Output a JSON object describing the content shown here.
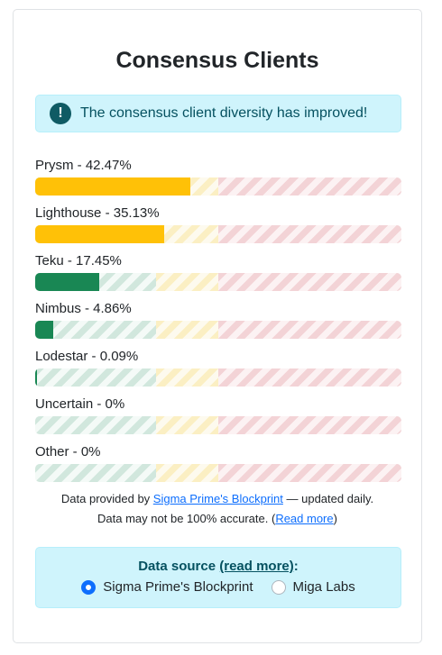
{
  "title": "Consensus Clients",
  "alert": {
    "icon": "exclamation-icon",
    "text": "The consensus client diversity has improved!"
  },
  "clients": [
    {
      "label": "Prysm - 42.47%",
      "share": 0.4247,
      "color": "#ffc107"
    },
    {
      "label": "Lighthouse - 35.13%",
      "share": 0.3513,
      "color": "#ffc107"
    },
    {
      "label": "Teku - 17.45%",
      "share": 0.1745,
      "color": "#198754"
    },
    {
      "label": "Nimbus - 4.86%",
      "share": 0.0486,
      "color": "#198754"
    },
    {
      "label": "Lodestar - 0.09%",
      "share": 0.0009,
      "color": "#198754"
    },
    {
      "label": "Uncertain - 0%",
      "share": 0,
      "color": "#198754"
    },
    {
      "label": "Other - 0%",
      "share": 0,
      "color": "#198754"
    }
  ],
  "footnote": {
    "prefix": "Data provided by ",
    "link": "Sigma Prime's Blockprint",
    "suffix": " — updated daily.",
    "line2_prefix": "Data may not be 100% accurate. (",
    "line2_link": "Read more",
    "line2_suffix": ")"
  },
  "source": {
    "label": "Data source ",
    "link": "(read more)",
    "colon": ":",
    "options": [
      {
        "label": "Sigma Prime's Blockprint",
        "checked": true
      },
      {
        "label": "Miga Labs",
        "checked": false
      }
    ]
  }
}
